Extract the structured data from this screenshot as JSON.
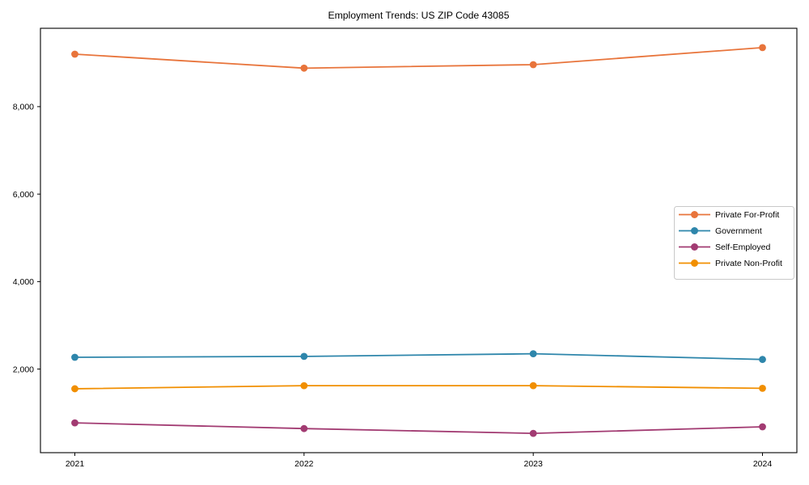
{
  "chart_data": {
    "type": "line",
    "title": "Employment Trends: US ZIP Code 43085",
    "xlabel": "",
    "ylabel": "",
    "x": [
      2021,
      2022,
      2023,
      2024
    ],
    "x_tick_labels": [
      "2021",
      "2022",
      "2023",
      "2024"
    ],
    "y_ticks": [
      2000,
      4000,
      6000,
      8000
    ],
    "y_tick_labels": [
      "2,000",
      "4,000",
      "6,000",
      "8,000"
    ],
    "xlim": [
      2020.85,
      2024.15
    ],
    "ylim": [
      89,
      9791
    ],
    "grid": false,
    "legend_position": "center right",
    "series": [
      {
        "name": "Private For-Profit",
        "color": "#e8743b",
        "values": [
          9200,
          8880,
          8960,
          9350
        ]
      },
      {
        "name": "Government",
        "color": "#2e86ab",
        "values": [
          2270,
          2290,
          2350,
          2220
        ]
      },
      {
        "name": "Self-Employed",
        "color": "#a23b72",
        "values": [
          770,
          640,
          530,
          680
        ]
      },
      {
        "name": "Private Non-Profit",
        "color": "#f18f01",
        "values": [
          1550,
          1620,
          1620,
          1560
        ]
      }
    ],
    "styles": {
      "frame_color": "#000000",
      "legend_border_color": "#c9c9c9",
      "legend_bg_color": "#ffffff",
      "tick_color": "#000000"
    }
  }
}
